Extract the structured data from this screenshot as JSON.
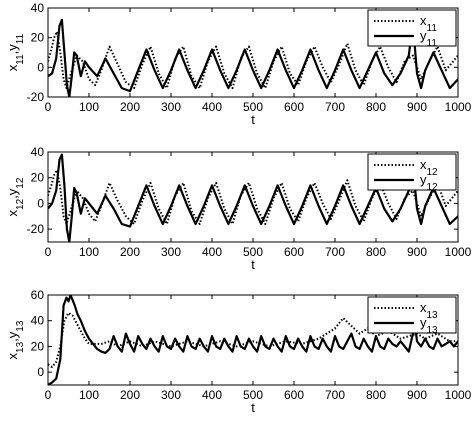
{
  "chart_data": [
    {
      "type": "line",
      "xlabel": "t",
      "ylabel": {
        "a": "x",
        "asub": "11",
        "b": "y",
        "bsub": "11"
      },
      "xlim": [
        0,
        1000
      ],
      "ylim": [
        -20,
        40
      ],
      "xticks": [
        0,
        100,
        200,
        300,
        400,
        500,
        600,
        700,
        800,
        900,
        1000
      ],
      "yticks": [
        -20,
        0,
        20,
        40
      ],
      "legend_position": "top-right",
      "series": [
        {
          "name": "x",
          "sub": "11",
          "style": "dotted",
          "x": [
            0,
            8,
            15,
            22,
            30,
            38,
            45,
            55,
            70,
            85,
            100,
            115,
            130,
            150,
            170,
            190,
            210,
            230,
            250,
            270,
            290,
            310,
            330,
            350,
            370,
            390,
            410,
            430,
            450,
            470,
            490,
            510,
            530,
            550,
            570,
            590,
            610,
            630,
            650,
            670,
            690,
            710,
            730,
            750,
            770,
            790,
            810,
            830,
            850,
            870,
            890,
            910,
            930,
            950,
            970,
            1000
          ],
          "values": [
            4,
            12,
            20,
            24,
            10,
            -8,
            -14,
            -5,
            8,
            4,
            -8,
            -12,
            -2,
            14,
            2,
            -10,
            -14,
            2,
            14,
            -4,
            -14,
            6,
            14,
            -6,
            -14,
            4,
            14,
            -4,
            -14,
            6,
            14,
            -4,
            -14,
            4,
            14,
            -4,
            -12,
            4,
            14,
            0,
            -10,
            2,
            16,
            -2,
            -12,
            4,
            14,
            0,
            -10,
            4,
            8,
            -8,
            4,
            14,
            -2,
            8
          ]
        },
        {
          "name": "y",
          "sub": "11",
          "style": "solid",
          "x": [
            0,
            10,
            20,
            28,
            34,
            40,
            46,
            52,
            58,
            64,
            70,
            80,
            90,
            100,
            120,
            140,
            160,
            180,
            200,
            220,
            240,
            260,
            280,
            300,
            320,
            340,
            360,
            380,
            400,
            420,
            440,
            460,
            480,
            500,
            520,
            540,
            560,
            580,
            600,
            620,
            640,
            660,
            680,
            700,
            720,
            740,
            760,
            780,
            800,
            820,
            840,
            860,
            880,
            890,
            900,
            910,
            920,
            940,
            960,
            980,
            1000
          ],
          "values": [
            -6,
            -4,
            6,
            28,
            32,
            10,
            -12,
            -20,
            -6,
            10,
            8,
            -6,
            4,
            0,
            -6,
            6,
            -4,
            -14,
            -16,
            -2,
            12,
            -2,
            -14,
            -2,
            12,
            -2,
            -14,
            -2,
            12,
            -2,
            -14,
            -2,
            12,
            -2,
            -14,
            -2,
            12,
            -2,
            -14,
            -2,
            12,
            -2,
            -14,
            -2,
            12,
            -2,
            -14,
            -2,
            10,
            -4,
            -12,
            -4,
            8,
            30,
            -4,
            -14,
            -2,
            10,
            -2,
            -14,
            -8
          ]
        }
      ]
    },
    {
      "type": "line",
      "xlabel": "t",
      "ylabel": {
        "a": "x",
        "asub": "12",
        "b": "y",
        "bsub": "12"
      },
      "xlim": [
        0,
        1000
      ],
      "ylim": [
        -30,
        40
      ],
      "xticks": [
        0,
        100,
        200,
        300,
        400,
        500,
        600,
        700,
        800,
        900,
        1000
      ],
      "yticks": [
        -20,
        0,
        20,
        40
      ],
      "legend_position": "top-right",
      "series": [
        {
          "name": "x",
          "sub": "12",
          "style": "dotted",
          "x": [
            0,
            8,
            15,
            22,
            30,
            38,
            45,
            55,
            70,
            85,
            100,
            115,
            130,
            150,
            170,
            190,
            210,
            230,
            250,
            270,
            290,
            310,
            330,
            350,
            370,
            390,
            410,
            430,
            450,
            470,
            490,
            510,
            530,
            550,
            570,
            590,
            610,
            630,
            650,
            670,
            690,
            710,
            730,
            750,
            770,
            790,
            810,
            830,
            850,
            870,
            890,
            910,
            930,
            950,
            970,
            1000
          ],
          "values": [
            6,
            14,
            22,
            26,
            12,
            -10,
            -16,
            -6,
            10,
            4,
            -8,
            -14,
            -2,
            16,
            2,
            -10,
            -16,
            2,
            16,
            -4,
            -16,
            6,
            16,
            -6,
            -16,
            4,
            16,
            -4,
            -16,
            6,
            16,
            -4,
            -16,
            4,
            16,
            -4,
            -14,
            4,
            16,
            0,
            -12,
            2,
            18,
            -2,
            -14,
            4,
            16,
            0,
            -12,
            4,
            10,
            -10,
            4,
            16,
            -2,
            10
          ]
        },
        {
          "name": "y",
          "sub": "12",
          "style": "solid",
          "x": [
            0,
            10,
            20,
            28,
            34,
            40,
            46,
            52,
            58,
            64,
            70,
            80,
            90,
            100,
            120,
            140,
            160,
            180,
            200,
            220,
            240,
            260,
            280,
            300,
            320,
            340,
            360,
            380,
            400,
            420,
            440,
            460,
            480,
            500,
            520,
            540,
            560,
            580,
            600,
            620,
            640,
            660,
            680,
            700,
            720,
            740,
            760,
            780,
            800,
            820,
            840,
            860,
            880,
            890,
            900,
            910,
            920,
            940,
            960,
            980,
            1000
          ],
          "values": [
            -4,
            0,
            10,
            34,
            38,
            14,
            -20,
            -30,
            -10,
            12,
            8,
            -8,
            4,
            0,
            -8,
            6,
            -4,
            -16,
            -18,
            -2,
            14,
            -2,
            -16,
            -2,
            14,
            -2,
            -16,
            -2,
            14,
            -2,
            -16,
            -2,
            14,
            -2,
            -16,
            -2,
            14,
            -2,
            -16,
            -2,
            14,
            -2,
            -16,
            -2,
            14,
            -2,
            -16,
            -2,
            12,
            -4,
            -14,
            -4,
            10,
            30,
            -4,
            -16,
            -2,
            12,
            -2,
            -16,
            -10
          ]
        }
      ]
    },
    {
      "type": "line",
      "xlabel": "t",
      "ylabel": {
        "a": "x",
        "asub": "13",
        "b": "y",
        "bsub": "13"
      },
      "xlim": [
        0,
        1000
      ],
      "ylim": [
        -10,
        60
      ],
      "xticks": [
        0,
        100,
        200,
        300,
        400,
        500,
        600,
        700,
        800,
        900,
        1000
      ],
      "yticks": [
        0,
        20,
        40,
        60
      ],
      "legend_position": "top-right",
      "series": [
        {
          "name": "x",
          "sub": "13",
          "style": "dotted",
          "x": [
            0,
            10,
            20,
            30,
            40,
            50,
            60,
            70,
            80,
            90,
            100,
            130,
            150,
            170,
            200,
            230,
            260,
            300,
            340,
            380,
            420,
            460,
            500,
            540,
            580,
            620,
            660,
            700,
            720,
            740,
            760,
            780,
            800,
            830,
            860,
            880,
            900,
            920,
            950,
            980,
            1000
          ],
          "values": [
            6,
            4,
            8,
            20,
            40,
            46,
            44,
            38,
            32,
            26,
            22,
            22,
            24,
            20,
            24,
            20,
            24,
            20,
            24,
            20,
            24,
            20,
            24,
            20,
            24,
            22,
            26,
            34,
            42,
            36,
            30,
            34,
            28,
            32,
            26,
            28,
            30,
            26,
            30,
            24,
            24
          ]
        },
        {
          "name": "y",
          "sub": "13",
          "style": "solid",
          "x": [
            0,
            5,
            10,
            20,
            30,
            38,
            45,
            50,
            55,
            60,
            65,
            72,
            80,
            90,
            100,
            110,
            120,
            130,
            140,
            150,
            160,
            170,
            180,
            190,
            200,
            210,
            220,
            230,
            240,
            250,
            260,
            270,
            280,
            290,
            300,
            310,
            320,
            330,
            340,
            350,
            360,
            370,
            380,
            390,
            400,
            410,
            420,
            430,
            440,
            450,
            460,
            470,
            480,
            490,
            500,
            510,
            520,
            530,
            540,
            550,
            560,
            570,
            580,
            590,
            600,
            610,
            620,
            630,
            640,
            650,
            660,
            670,
            680,
            690,
            700,
            710,
            720,
            730,
            740,
            750,
            760,
            770,
            780,
            790,
            800,
            810,
            820,
            830,
            840,
            850,
            860,
            870,
            880,
            890,
            895,
            900,
            910,
            920,
            930,
            940,
            950,
            960,
            970,
            980,
            990,
            1000
          ],
          "values": [
            -10,
            -9,
            -8,
            -5,
            10,
            52,
            58,
            55,
            60,
            56,
            52,
            45,
            40,
            32,
            26,
            22,
            18,
            16,
            15,
            18,
            28,
            20,
            16,
            30,
            22,
            16,
            28,
            22,
            18,
            26,
            20,
            16,
            28,
            20,
            18,
            26,
            20,
            16,
            28,
            20,
            18,
            26,
            20,
            16,
            28,
            20,
            18,
            26,
            20,
            16,
            28,
            20,
            18,
            26,
            20,
            16,
            28,
            20,
            18,
            26,
            20,
            16,
            28,
            20,
            18,
            26,
            20,
            16,
            28,
            20,
            18,
            26,
            20,
            16,
            28,
            20,
            18,
            24,
            30,
            20,
            18,
            26,
            20,
            16,
            28,
            20,
            18,
            26,
            22,
            20,
            24,
            20,
            16,
            30,
            38,
            24,
            20,
            26,
            20,
            18,
            26,
            20,
            22,
            24,
            20,
            24
          ]
        }
      ]
    }
  ]
}
